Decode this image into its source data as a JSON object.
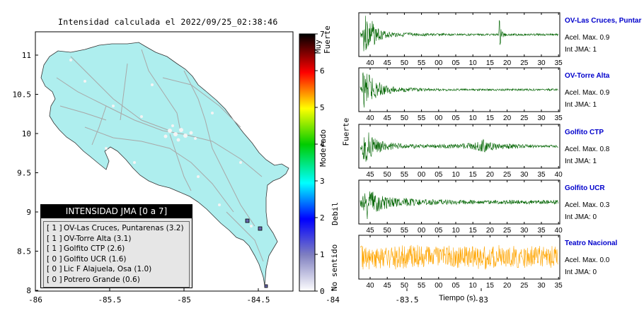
{
  "map": {
    "title": "Intensidad calculada el 2022/09/25_02:38:46",
    "x_ticks": [
      "-86",
      "-85.5",
      "-85",
      "-84.5",
      "-84",
      "-83.5",
      "-83"
    ],
    "y_ticks": [
      "11",
      "10.5",
      "10",
      "9.5",
      "9",
      "8.5",
      "8"
    ],
    "colors": {
      "land": "#aeeeee",
      "road": "#a8a8a8",
      "town": "#f4f4f4"
    }
  },
  "legend": {
    "title": "INTENSIDAD JMA [0 a 7]",
    "items": [
      {
        "grade": "[ 1 ]",
        "label": "OV-Las Cruces, Puntarenas (3.2)"
      },
      {
        "grade": "[ 1 ]",
        "label": "OV-Torre Alta (3.1)"
      },
      {
        "grade": "[ 1 ]",
        "label": "Golfito CTP (2.6)"
      },
      {
        "grade": "[ 0 ]",
        "label": "Golfito UCR (1.6)"
      },
      {
        "grade": "[ 0 ]",
        "label": "Lic F Alajuela, Osa (1.0)"
      },
      {
        "grade": "[ 0 ]",
        "label": "Potrero Grande (0.6)"
      }
    ]
  },
  "colorbar": {
    "ticks": [
      "7",
      "6",
      "5",
      "4",
      "3",
      "2",
      "1",
      "0"
    ],
    "labels": [
      "Muy Fuerte",
      "Fuerte",
      "Moderado",
      "Debil",
      "No sentido"
    ]
  },
  "traces": [
    {
      "name": "OV-Las Cruces, Puntar",
      "acc": "Acel. Max. 0.9",
      "int": "Int JMA: 1",
      "color": "#006400",
      "ticks": [
        "40",
        "45",
        "50",
        "55",
        "00",
        "05",
        "10",
        "15",
        "20",
        "25",
        "30",
        "35"
      ],
      "amps": [
        0.15,
        0.9,
        0.95,
        0.85,
        0.7,
        0.55,
        0.4,
        0.3,
        0.25,
        0.2,
        0.18,
        0.16,
        0.14,
        0.12,
        0.12,
        0.1,
        0.1,
        0.1,
        0.1,
        0.09,
        0.09,
        0.08,
        0.08,
        0.08,
        0.07,
        0.07,
        0.07,
        0.06,
        0.06,
        0.06,
        0.06,
        0.06,
        0.06,
        0.06,
        0.05,
        0.05,
        0.05,
        0.05,
        0.05,
        0.05,
        0.05,
        0.05,
        0.05,
        0.05,
        0.05,
        0.05,
        0.05,
        0.05,
        0.05,
        0.05,
        0.05,
        0.05,
        0.05,
        0.05,
        0.05,
        0.05,
        0.7,
        0.2,
        0.1,
        0.06,
        0.05,
        0.05,
        0.05,
        0.05,
        0.05,
        0.05,
        0.05,
        0.05,
        0.05,
        0.05,
        0.05,
        0.05,
        0.05,
        0.05,
        0.05,
        0.05,
        0.05,
        0.05,
        0.05,
        0.05
      ]
    },
    {
      "name": "OV-Torre Alta",
      "acc": "Acel. Max. 0.9",
      "int": "Int JMA: 1",
      "color": "#006400",
      "ticks": [
        "40",
        "45",
        "50",
        "55",
        "00",
        "05",
        "10",
        "15",
        "20",
        "25",
        "30",
        "35"
      ],
      "amps": [
        0.15,
        0.9,
        0.85,
        0.75,
        0.65,
        0.55,
        0.45,
        0.38,
        0.3,
        0.25,
        0.22,
        0.2,
        0.18,
        0.16,
        0.14,
        0.13,
        0.12,
        0.11,
        0.1,
        0.1,
        0.09,
        0.09,
        0.08,
        0.08,
        0.08,
        0.07,
        0.07,
        0.07,
        0.07,
        0.06,
        0.06,
        0.06,
        0.06,
        0.06,
        0.06,
        0.05,
        0.05,
        0.05,
        0.05,
        0.05,
        0.05,
        0.05,
        0.05,
        0.05,
        0.05,
        0.05,
        0.05,
        0.05,
        0.05,
        0.05,
        0.05,
        0.05,
        0.05,
        0.05,
        0.05,
        0.05,
        0.05,
        0.05,
        0.05,
        0.05,
        0.05,
        0.05,
        0.05,
        0.05,
        0.05,
        0.05,
        0.05,
        0.05,
        0.05,
        0.05,
        0.05,
        0.05,
        0.05,
        0.05,
        0.05,
        0.05,
        0.05,
        0.05,
        0.05,
        0.05
      ]
    },
    {
      "name": "Golfito CTP",
      "acc": "Acel. Max. 0.8",
      "int": "Int JMA: 1",
      "color": "#006400",
      "ticks": [
        "45",
        "50",
        "55",
        "00",
        "05",
        "10",
        "15",
        "20",
        "25",
        "30",
        "35",
        "40"
      ],
      "amps": [
        0.2,
        0.85,
        0.8,
        0.7,
        0.55,
        0.45,
        0.38,
        0.32,
        0.28,
        0.25,
        0.22,
        0.2,
        0.18,
        0.17,
        0.16,
        0.15,
        0.14,
        0.13,
        0.12,
        0.12,
        0.11,
        0.11,
        0.1,
        0.1,
        0.1,
        0.1,
        0.1,
        0.1,
        0.1,
        0.1,
        0.1,
        0.1,
        0.1,
        0.1,
        0.1,
        0.1,
        0.1,
        0.1,
        0.1,
        0.1,
        0.12,
        0.14,
        0.15,
        0.16,
        0.17,
        0.18,
        0.2,
        0.22,
        0.28,
        0.35,
        0.3,
        0.25,
        0.22,
        0.2,
        0.2,
        0.2,
        0.18,
        0.16,
        0.15,
        0.14,
        0.13,
        0.12,
        0.11,
        0.1,
        0.1,
        0.09,
        0.09,
        0.08,
        0.08,
        0.08,
        0.07,
        0.07,
        0.07,
        0.06,
        0.06,
        0.06,
        0.06,
        0.06,
        0.06,
        0.06
      ]
    },
    {
      "name": "Golfito UCR",
      "acc": "Acel. Max. 0.3",
      "int": "Int JMA: 0",
      "color": "#006400",
      "ticks": [
        "45",
        "50",
        "55",
        "00",
        "05",
        "10",
        "15",
        "20",
        "25",
        "30",
        "35",
        "40"
      ],
      "amps": [
        0.3,
        0.95,
        0.85,
        0.75,
        0.65,
        0.55,
        0.5,
        0.45,
        0.4,
        0.35,
        0.32,
        0.3,
        0.28,
        0.26,
        0.25,
        0.24,
        0.22,
        0.21,
        0.2,
        0.19,
        0.18,
        0.18,
        0.17,
        0.17,
        0.16,
        0.16,
        0.15,
        0.15,
        0.14,
        0.14,
        0.14,
        0.13,
        0.13,
        0.13,
        0.12,
        0.12,
        0.12,
        0.12,
        0.12,
        0.11,
        0.11,
        0.11,
        0.11,
        0.11,
        0.11,
        0.1,
        0.1,
        0.1,
        0.1,
        0.1,
        0.1,
        0.1,
        0.1,
        0.1,
        0.1,
        0.1,
        0.1,
        0.1,
        0.1,
        0.1,
        0.1,
        0.1,
        0.1,
        0.1,
        0.1,
        0.1,
        0.1,
        0.1,
        0.1,
        0.1,
        0.1,
        0.1,
        0.1,
        0.1,
        0.1,
        0.1,
        0.1,
        0.1,
        0.1,
        0.1
      ]
    },
    {
      "name": "Teatro Nacional",
      "acc": "Acel. Max. 0.0",
      "int": "Int JMA: 0",
      "color": "#ffa500",
      "ticks": [
        "40",
        "45",
        "50",
        "55",
        "00",
        "05",
        "10",
        "15",
        "20",
        "25",
        "30",
        "35"
      ],
      "amps": [
        0.55,
        0.6,
        0.5,
        0.6,
        0.55,
        0.5,
        0.65,
        0.55,
        0.6,
        0.5,
        0.55,
        0.6,
        0.5,
        0.55,
        0.6,
        0.55,
        0.5,
        0.6,
        0.55,
        0.5,
        0.6,
        0.55,
        0.5,
        0.6,
        0.55,
        0.5,
        0.6,
        0.55,
        0.5,
        0.65,
        0.55,
        0.5,
        0.6,
        0.55,
        0.5,
        0.6,
        0.55,
        0.5,
        0.6,
        0.55,
        0.5,
        0.6,
        0.55,
        0.5,
        0.6,
        0.55,
        0.5,
        0.6,
        0.55,
        0.5,
        0.6,
        0.55,
        0.5,
        0.6,
        0.55,
        0.5,
        0.6,
        0.55,
        0.5,
        0.6,
        0.55,
        0.5,
        0.6,
        0.55,
        0.5,
        0.6,
        0.55,
        0.5,
        0.6,
        0.55,
        0.5,
        0.6,
        0.55,
        0.5,
        0.6,
        0.55,
        0.5,
        0.6,
        0.55,
        0.5
      ]
    }
  ],
  "time_axis_label": "Tiempo (s)"
}
